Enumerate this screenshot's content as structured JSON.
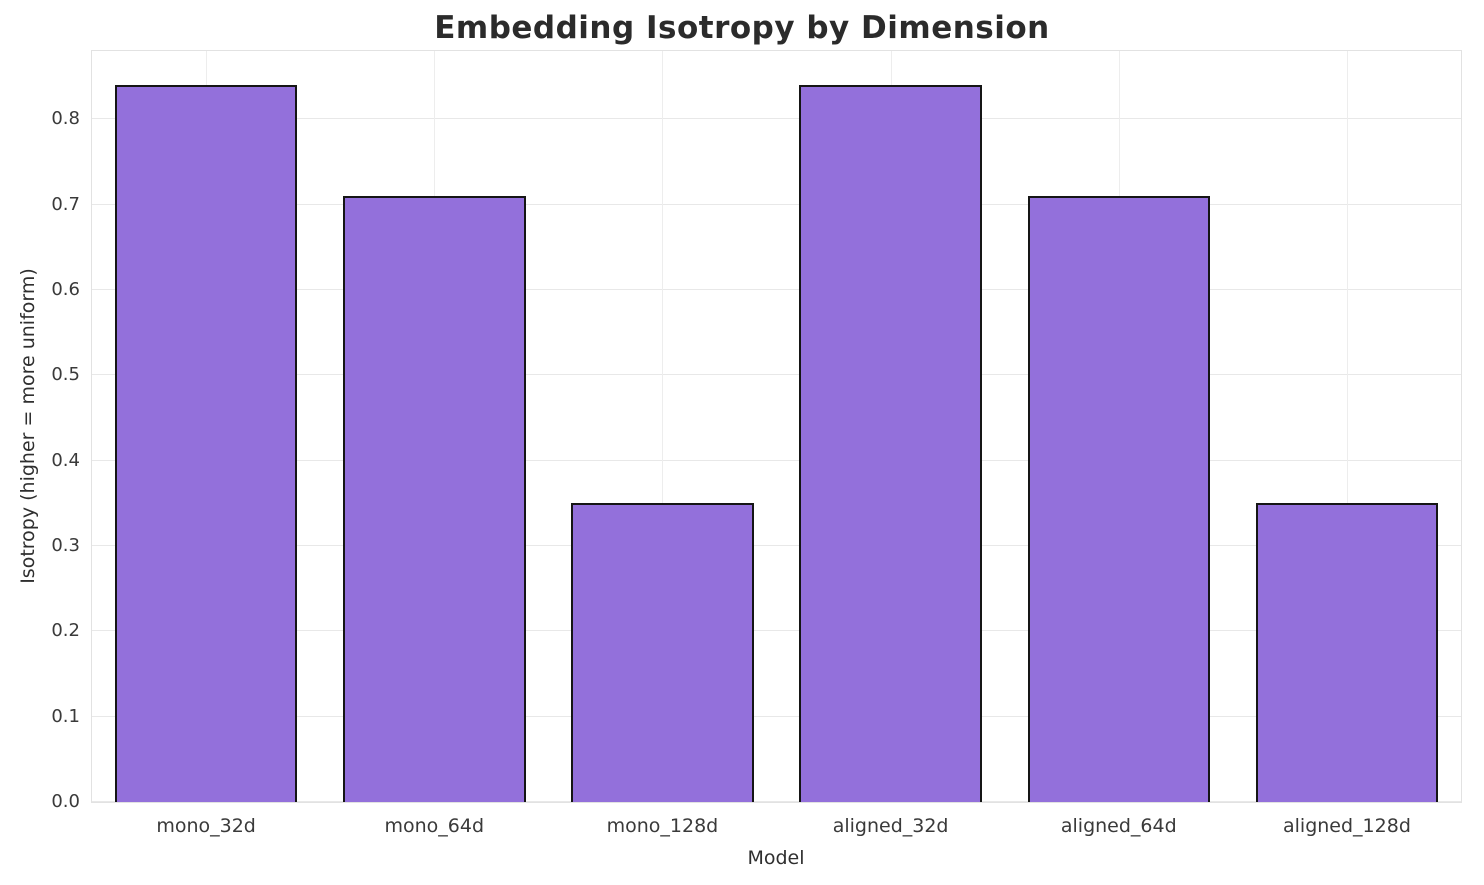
{
  "chart_data": {
    "type": "bar",
    "title": "Embedding Isotropy by Dimension",
    "xlabel": "Model",
    "ylabel": "Isotropy (higher = more uniform)",
    "categories": [
      "mono_32d",
      "mono_64d",
      "mono_128d",
      "aligned_32d",
      "aligned_64d",
      "aligned_128d"
    ],
    "values": [
      0.84,
      0.71,
      0.35,
      0.84,
      0.71,
      0.35
    ],
    "ylim": [
      0,
      0.88
    ],
    "yticks": [
      0.0,
      0.1,
      0.2,
      0.3,
      0.4,
      0.5,
      0.6,
      0.7,
      0.8
    ],
    "grid": true,
    "legend": false,
    "bar_color": "#9370DB",
    "bar_edge_color": "#151515",
    "grid_color": "#e8e8e8",
    "text_color": "#2f2f2f"
  }
}
